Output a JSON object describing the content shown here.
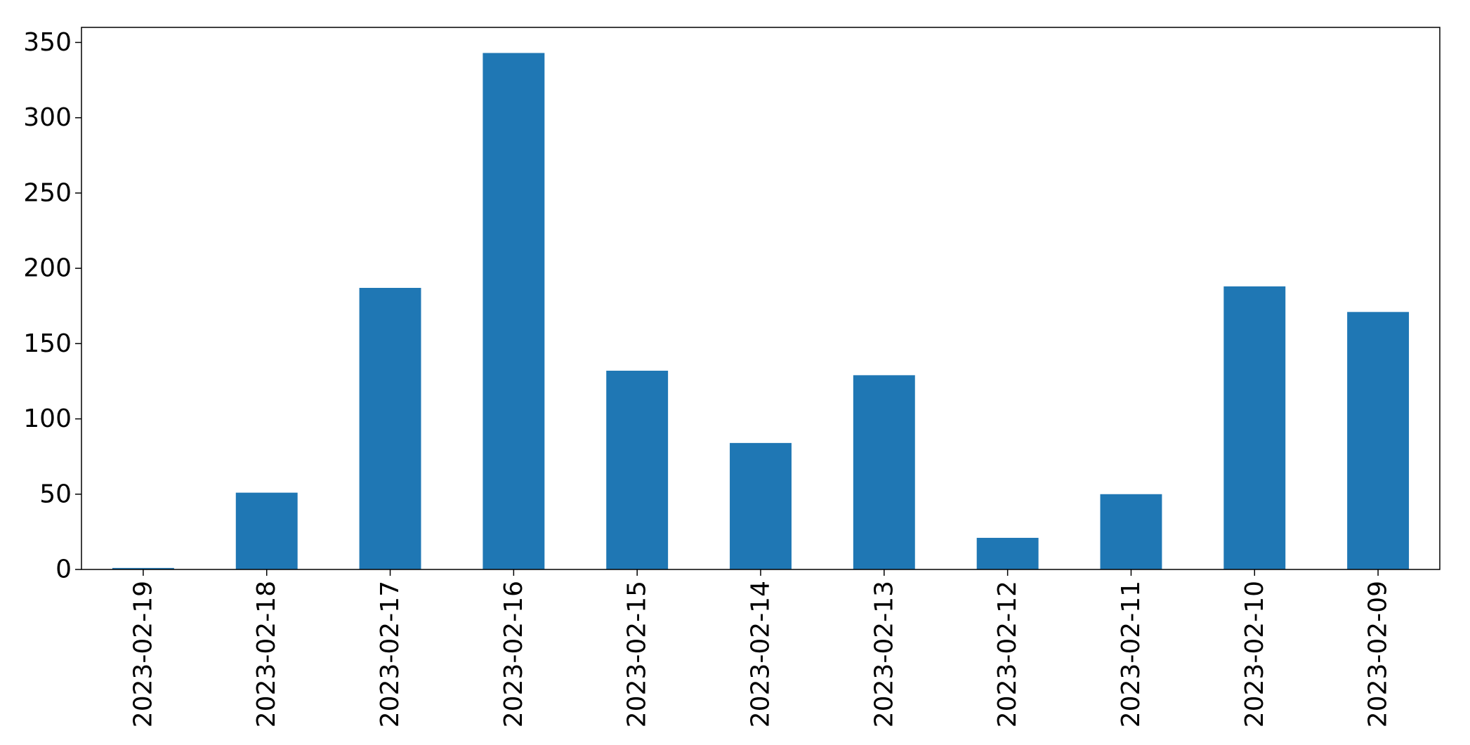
{
  "chart_data": {
    "type": "bar",
    "categories": [
      "2023-02-19",
      "2023-02-18",
      "2023-02-17",
      "2023-02-16",
      "2023-02-15",
      "2023-02-14",
      "2023-02-13",
      "2023-02-12",
      "2023-02-11",
      "2023-02-10",
      "2023-02-09"
    ],
    "values": [
      1,
      51,
      187,
      343,
      132,
      84,
      129,
      21,
      50,
      188,
      171
    ],
    "title": "",
    "xlabel": "",
    "ylabel": "",
    "ylim": [
      0,
      360
    ],
    "yticks": [
      0,
      50,
      100,
      150,
      200,
      250,
      300,
      350
    ],
    "grid": false,
    "bar_color": "#1f77b4"
  }
}
